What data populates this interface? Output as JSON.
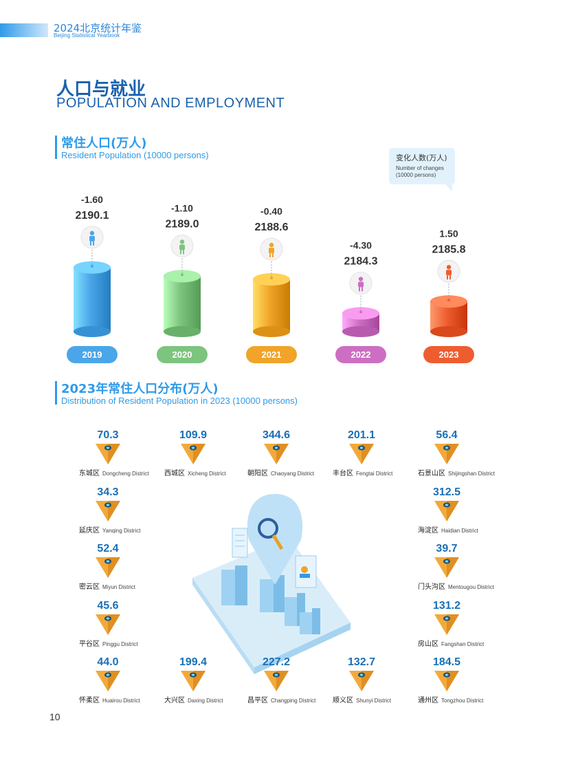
{
  "header": {
    "title": "2024北京统计年鉴",
    "subtitle": "Beijing Statistical Yearbook"
  },
  "main_title_cn": "人口与就业",
  "main_title_en": "POPULATION AND EMPLOYMENT",
  "section1": {
    "title_cn": "常住人口(万人)",
    "title_en": "Resident Population (10000 persons)"
  },
  "bubble": {
    "cn": "变化人数(万人)",
    "en": "Number of changes (10000 persons)"
  },
  "section2": {
    "title_cn": "2023年常住人口分布(万人)",
    "title_en": "Distribution of Resident Population in 2023 (10000 persons)"
  },
  "page_number": "10",
  "colors": {
    "accent": "#2f9be8",
    "title": "#1a61ad",
    "triangle": "#f2a93b",
    "series": [
      "#4aa6e8",
      "#7dc47f",
      "#f0a429",
      "#cc6fc2",
      "#ee5d30"
    ]
  },
  "icons": [
    "person-icon",
    "magnifier-icon",
    "building-icon",
    "document-icon",
    "user-card-icon"
  ],
  "chart_data": [
    {
      "type": "bar",
      "title": "常住人口(万人)",
      "categories": [
        "2019",
        "2020",
        "2021",
        "2022",
        "2023"
      ],
      "values": [
        2190.1,
        2189.0,
        2188.6,
        2184.3,
        2185.8
      ],
      "changes": [
        "-1.60",
        "-1.10",
        "-0.40",
        "-4.30",
        "1.50"
      ],
      "value_labels": [
        "2190.1",
        "2189.0",
        "2188.6",
        "2184.3",
        "2185.8"
      ]
    },
    {
      "type": "table",
      "title": "2023年常住人口分布(万人)",
      "districts": [
        {
          "cn": "东城区",
          "en": "Dongcheng District",
          "value": "70.3"
        },
        {
          "cn": "西城区",
          "en": "Xicheng District",
          "value": "109.9"
        },
        {
          "cn": "朝阳区",
          "en": "Chaoyang District",
          "value": "344.6"
        },
        {
          "cn": "丰台区",
          "en": "Fengtai District",
          "value": "201.1"
        },
        {
          "cn": "石景山区",
          "en": "Shijingshan District",
          "value": "56.4"
        },
        {
          "cn": "延庆区",
          "en": "Yanqing District",
          "value": "34.3"
        },
        {
          "cn": "海淀区",
          "en": "Haidian District",
          "value": "312.5"
        },
        {
          "cn": "密云区",
          "en": "Miyun District",
          "value": "52.4"
        },
        {
          "cn": "门头沟区",
          "en": "Mentougou District",
          "value": "39.7"
        },
        {
          "cn": "平谷区",
          "en": "Pinggu District",
          "value": "45.6"
        },
        {
          "cn": "房山区",
          "en": "Fangshan District",
          "value": "131.2"
        },
        {
          "cn": "怀柔区",
          "en": "Huairou District",
          "value": "44.0"
        },
        {
          "cn": "大兴区",
          "en": "Daxing District",
          "value": "199.4"
        },
        {
          "cn": "昌平区",
          "en": "Changping District",
          "value": "227.2"
        },
        {
          "cn": "顺义区",
          "en": "Shunyi District",
          "value": "132.7"
        },
        {
          "cn": "通州区",
          "en": "Tongzhou District",
          "value": "184.5"
        }
      ]
    }
  ]
}
